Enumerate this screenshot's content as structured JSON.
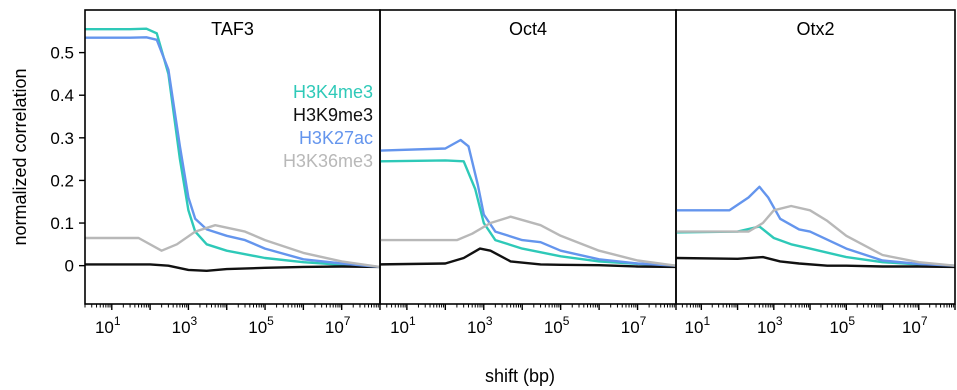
{
  "chart_data": {
    "type": "line",
    "ylabel": "normalized correlation",
    "xlabel": "shift (bp)",
    "x_scale": "log",
    "xlim": [
      2,
      100000000
    ],
    "ylim": [
      -0.09,
      0.6
    ],
    "y_ticks": [
      "0",
      "0.1",
      "0.2",
      "0.3",
      "0.4",
      "0.5"
    ],
    "x_ticks": [
      {
        "base": "10",
        "exp": "1"
      },
      {
        "base": "10",
        "exp": "3"
      },
      {
        "base": "10",
        "exp": "5"
      },
      {
        "base": "10",
        "exp": "7"
      }
    ],
    "legend": {
      "placement": "inside first panel, right",
      "entries": [
        {
          "label": "H3K4me3",
          "color": "#2ec9b8"
        },
        {
          "label": "H3K9me3",
          "color": "#111111"
        },
        {
          "label": "H3K27ac",
          "color": "#6495ed"
        },
        {
          "label": "H3K36me3",
          "color": "#b8b8b8"
        }
      ]
    },
    "panels": [
      {
        "title": "TAF3",
        "series": [
          {
            "name": "H3K4me3",
            "color": "#2ec9b8",
            "points": [
              [
                2,
                0.555
              ],
              [
                30,
                0.555
              ],
              [
                80,
                0.556
              ],
              [
                150,
                0.545
              ],
              [
                300,
                0.45
              ],
              [
                600,
                0.25
              ],
              [
                1000,
                0.13
              ],
              [
                1500,
                0.08
              ],
              [
                3000,
                0.05
              ],
              [
                10000,
                0.035
              ],
              [
                100000,
                0.018
              ],
              [
                1000000,
                0.008
              ],
              [
                10000000,
                0.002
              ],
              [
                100000000,
                -0.003
              ]
            ]
          },
          {
            "name": "H3K9me3",
            "color": "#111111",
            "points": [
              [
                2,
                0.003
              ],
              [
                100,
                0.003
              ],
              [
                300,
                0.0
              ],
              [
                1000,
                -0.01
              ],
              [
                3000,
                -0.012
              ],
              [
                10000,
                -0.008
              ],
              [
                100000,
                -0.005
              ],
              [
                1000000,
                -0.003
              ],
              [
                10000000,
                -0.002
              ],
              [
                100000000,
                -0.003
              ]
            ]
          },
          {
            "name": "H3K27ac",
            "color": "#6495ed",
            "points": [
              [
                2,
                0.535
              ],
              [
                30,
                0.535
              ],
              [
                80,
                0.536
              ],
              [
                150,
                0.53
              ],
              [
                300,
                0.46
              ],
              [
                600,
                0.28
              ],
              [
                1000,
                0.16
              ],
              [
                1500,
                0.11
              ],
              [
                3000,
                0.085
              ],
              [
                10000,
                0.07
              ],
              [
                30000,
                0.06
              ],
              [
                100000,
                0.04
              ],
              [
                1000000,
                0.015
              ],
              [
                10000000,
                0.005
              ],
              [
                100000000,
                -0.003
              ]
            ]
          },
          {
            "name": "H3K36me3",
            "color": "#b8b8b8",
            "points": [
              [
                2,
                0.065
              ],
              [
                50,
                0.065
              ],
              [
                200,
                0.035
              ],
              [
                500,
                0.05
              ],
              [
                1500,
                0.08
              ],
              [
                5000,
                0.095
              ],
              [
                30000,
                0.08
              ],
              [
                100000,
                0.06
              ],
              [
                1000000,
                0.03
              ],
              [
                10000000,
                0.01
              ],
              [
                100000000,
                -0.003
              ]
            ]
          }
        ]
      },
      {
        "title": "Oct4",
        "series": [
          {
            "name": "H3K4me3",
            "color": "#2ec9b8",
            "points": [
              [
                2,
                0.245
              ],
              [
                100,
                0.247
              ],
              [
                300,
                0.245
              ],
              [
                600,
                0.18
              ],
              [
                1000,
                0.1
              ],
              [
                2000,
                0.06
              ],
              [
                10000,
                0.04
              ],
              [
                100000,
                0.022
              ],
              [
                1000000,
                0.01
              ],
              [
                10000000,
                0.004
              ],
              [
                100000000,
                0.0
              ]
            ]
          },
          {
            "name": "H3K9me3",
            "color": "#111111",
            "points": [
              [
                2,
                0.003
              ],
              [
                100,
                0.005
              ],
              [
                300,
                0.018
              ],
              [
                800,
                0.04
              ],
              [
                1500,
                0.035
              ],
              [
                5000,
                0.01
              ],
              [
                30000,
                0.003
              ],
              [
                100000,
                0.002
              ],
              [
                1000000,
                0.001
              ],
              [
                10000000,
                -0.002
              ],
              [
                100000000,
                -0.003
              ]
            ]
          },
          {
            "name": "H3K27ac",
            "color": "#6495ed",
            "points": [
              [
                2,
                0.27
              ],
              [
                100,
                0.275
              ],
              [
                250,
                0.295
              ],
              [
                400,
                0.28
              ],
              [
                700,
                0.19
              ],
              [
                1000,
                0.12
              ],
              [
                2000,
                0.08
              ],
              [
                10000,
                0.06
              ],
              [
                30000,
                0.055
              ],
              [
                100000,
                0.035
              ],
              [
                1000000,
                0.015
              ],
              [
                10000000,
                0.005
              ],
              [
                100000000,
                0.0
              ]
            ]
          },
          {
            "name": "H3K36me3",
            "color": "#b8b8b8",
            "points": [
              [
                2,
                0.06
              ],
              [
                200,
                0.06
              ],
              [
                500,
                0.075
              ],
              [
                1500,
                0.1
              ],
              [
                5000,
                0.115
              ],
              [
                30000,
                0.095
              ],
              [
                100000,
                0.07
              ],
              [
                1000000,
                0.035
              ],
              [
                10000000,
                0.012
              ],
              [
                100000000,
                0.0
              ]
            ]
          }
        ]
      },
      {
        "title": "Otx2",
        "series": [
          {
            "name": "H3K4me3",
            "color": "#2ec9b8",
            "points": [
              [
                2,
                0.078
              ],
              [
                100,
                0.08
              ],
              [
                400,
                0.092
              ],
              [
                1000,
                0.065
              ],
              [
                3000,
                0.05
              ],
              [
                10000,
                0.04
              ],
              [
                100000,
                0.02
              ],
              [
                1000000,
                0.008
              ],
              [
                10000000,
                0.003
              ],
              [
                100000000,
                0.0
              ]
            ]
          },
          {
            "name": "H3K9me3",
            "color": "#111111",
            "points": [
              [
                2,
                0.018
              ],
              [
                100,
                0.016
              ],
              [
                500,
                0.02
              ],
              [
                1500,
                0.01
              ],
              [
                5000,
                0.005
              ],
              [
                30000,
                0.0
              ],
              [
                100000,
                0.0
              ],
              [
                1000000,
                -0.002
              ],
              [
                10000000,
                -0.002
              ],
              [
                100000000,
                -0.003
              ]
            ]
          },
          {
            "name": "H3K27ac",
            "color": "#6495ed",
            "points": [
              [
                2,
                0.13
              ],
              [
                60,
                0.13
              ],
              [
                200,
                0.16
              ],
              [
                400,
                0.185
              ],
              [
                700,
                0.16
              ],
              [
                1500,
                0.11
              ],
              [
                5000,
                0.085
              ],
              [
                10000,
                0.08
              ],
              [
                100000,
                0.04
              ],
              [
                1000000,
                0.012
              ],
              [
                10000000,
                0.004
              ],
              [
                100000000,
                0.0
              ]
            ]
          },
          {
            "name": "H3K36me3",
            "color": "#b8b8b8",
            "points": [
              [
                2,
                0.08
              ],
              [
                200,
                0.08
              ],
              [
                500,
                0.1
              ],
              [
                1000,
                0.13
              ],
              [
                3000,
                0.14
              ],
              [
                10000,
                0.13
              ],
              [
                30000,
                0.105
              ],
              [
                100000,
                0.07
              ],
              [
                1000000,
                0.025
              ],
              [
                10000000,
                0.008
              ],
              [
                100000000,
                0.0
              ]
            ]
          }
        ]
      }
    ]
  }
}
